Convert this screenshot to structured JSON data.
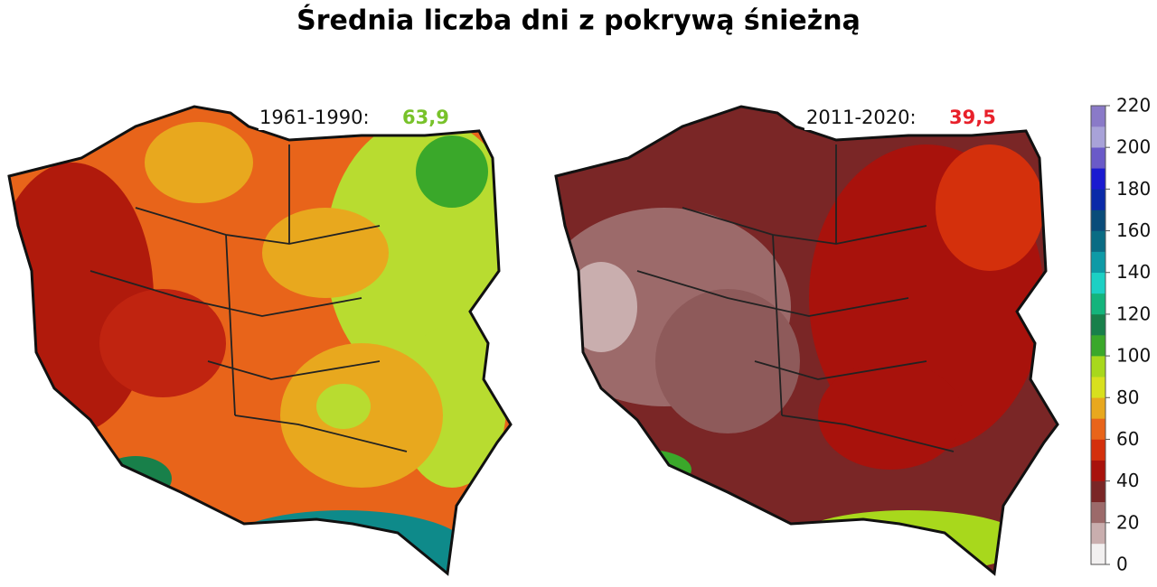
{
  "title": "Średnia liczba dni z pokrywą śnieżną",
  "maps": [
    {
      "period": "1961-1990:",
      "value": "63,9",
      "value_color": "#78c22a"
    },
    {
      "period": "2011-2020:",
      "value": "39,5",
      "value_color": "#e8202a"
    }
  ],
  "colorbar": {
    "lim": [
      0,
      220
    ],
    "ticks": [
      0,
      20,
      40,
      60,
      80,
      100,
      120,
      140,
      160,
      180,
      200,
      220
    ],
    "colors": [
      "#f2f0f0",
      "#c9aeae",
      "#9c6a6a",
      "#7a2626",
      "#a8120c",
      "#d4300c",
      "#e8641a",
      "#e8a81e",
      "#d8e01e",
      "#a8d81c",
      "#3aa82a",
      "#18804a",
      "#14b47c",
      "#1cd0c4",
      "#0e9aa6",
      "#0a6c84",
      "#0a4c7a",
      "#0a2aa8",
      "#1a1ad0",
      "#6a5ac8",
      "#a8a2d8",
      "#8a7ac8"
    ]
  }
}
